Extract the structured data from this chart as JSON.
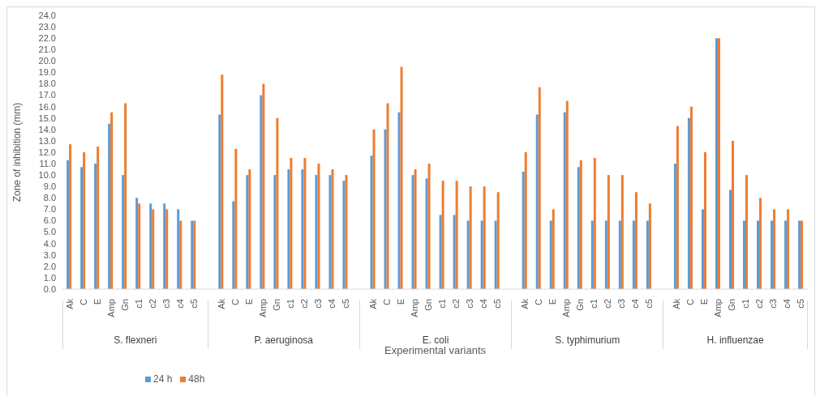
{
  "chart_data": {
    "type": "bar",
    "xlabel": "Experimental variants",
    "ylabel": "Zone of inhibition (mm)",
    "categories": [
      "Ak",
      "C",
      "E",
      "Amp",
      "Gn",
      "c1",
      "c2",
      "c3",
      "c4",
      "c5",
      null,
      "Ak",
      "C",
      "E",
      "Amp",
      "Gn",
      "c1",
      "c2",
      "c3",
      "c4",
      "c5",
      null,
      "Ak",
      "C",
      "E",
      "Amp",
      "Gn",
      "c1",
      "c2",
      "c3",
      "c4",
      "c5",
      null,
      "Ak",
      "C",
      "E",
      "Amp",
      "Gn",
      "c1",
      "c2",
      "c3",
      "c4",
      "c5",
      null,
      "Ak",
      "C",
      "E",
      "Amp",
      "Gn",
      "c1",
      "c2",
      "c3",
      "c4",
      "c5"
    ],
    "annotations": [
      "S. flexneri",
      "P. aeruginosa",
      "E. coli",
      "S. typhimurium",
      "H. influenzae"
    ],
    "series": [
      {
        "name": "24 h",
        "color": "#5b9bd5",
        "values": [
          11.3,
          10.7,
          11,
          14.5,
          10,
          8,
          7.5,
          7.5,
          7,
          6,
          null,
          15.3,
          7.7,
          10,
          17,
          10,
          10.5,
          10.5,
          10,
          10,
          9.5,
          null,
          11.7,
          14,
          15.5,
          10,
          9.7,
          6.5,
          6.5,
          6,
          6,
          6,
          null,
          10.3,
          15.3,
          6,
          15.5,
          10.7,
          6,
          6,
          6,
          6,
          6,
          null,
          11,
          15,
          7,
          22,
          8.7,
          6,
          6,
          6,
          6,
          6
        ]
      },
      {
        "name": "48h",
        "color": "#ed7d31",
        "values": [
          12.7,
          12,
          12.5,
          15.5,
          16.3,
          7.5,
          7,
          7,
          6,
          6,
          null,
          18.8,
          12.3,
          10.5,
          18,
          15,
          11.5,
          11.5,
          11,
          10.5,
          10,
          null,
          14,
          16.3,
          19.5,
          10.5,
          11,
          9.5,
          9.5,
          9,
          9,
          8.5,
          null,
          12,
          17.7,
          7,
          16.5,
          11.3,
          11.5,
          10,
          10,
          8.5,
          7.5,
          null,
          14.3,
          16,
          12,
          22,
          13,
          10,
          8,
          7,
          7,
          6
        ]
      }
    ],
    "ylim": [
      0,
      24
    ],
    "yticks": [
      {
        "value": 0,
        "label": "0.0"
      },
      {
        "value": 1,
        "label": "1.0"
      },
      {
        "value": 2,
        "label": "2.0"
      },
      {
        "value": 3,
        "label": "3.0"
      },
      {
        "value": 4,
        "label": "4.0"
      },
      {
        "value": 5,
        "label": "5.0"
      },
      {
        "value": 6,
        "label": "6.0"
      },
      {
        "value": 7,
        "label": "7.0"
      },
      {
        "value": 8,
        "label": "8.0"
      },
      {
        "value": 9,
        "label": "9.0"
      },
      {
        "value": 10,
        "label": "10.0"
      },
      {
        "value": 11,
        "label": "11.0"
      },
      {
        "value": 12,
        "label": "12.0"
      },
      {
        "value": 13,
        "label": "13.0"
      },
      {
        "value": 14,
        "label": "14.0"
      },
      {
        "value": 15,
        "label": "15.0"
      },
      {
        "value": 16,
        "label": "16.0"
      },
      {
        "value": 17,
        "label": "17.0"
      },
      {
        "value": 18,
        "label": "18.0"
      },
      {
        "value": 19,
        "label": "19.0"
      },
      {
        "value": 20,
        "label": "20.0"
      },
      {
        "value": 21,
        "label": "21.0"
      },
      {
        "value": 22,
        "label": "22.0"
      },
      {
        "value": 23,
        "label": "23.0"
      },
      {
        "value": 24,
        "label": "24.0"
      }
    ],
    "grid": false,
    "legend": "bottom left"
  }
}
